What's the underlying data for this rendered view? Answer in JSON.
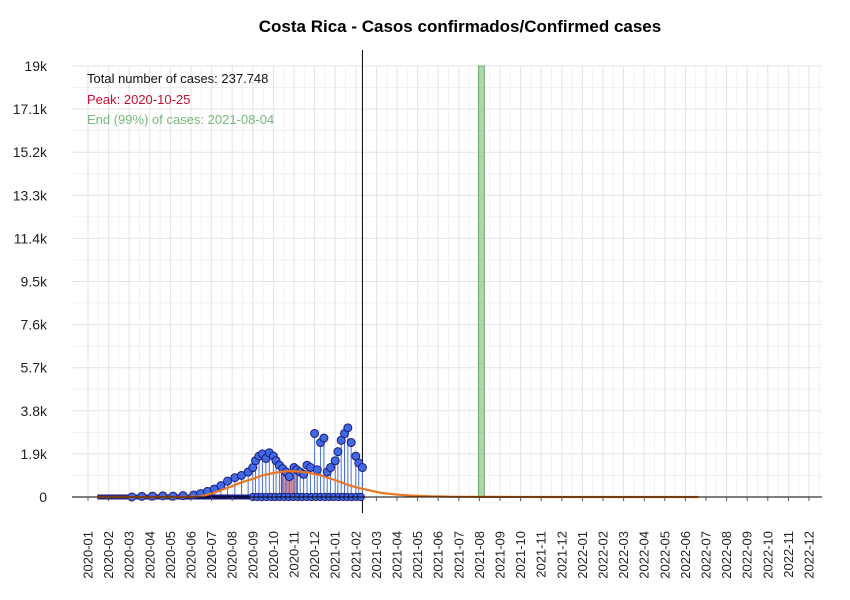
{
  "chart_data": {
    "type": "line",
    "title": "Costa Rica - Casos confirmados/Confirmed cases",
    "xlabel": "",
    "ylabel": "",
    "x_ticks": [
      "2020-01",
      "2020-02",
      "2020-03",
      "2020-04",
      "2020-05",
      "2020-06",
      "2020-07",
      "2020-08",
      "2020-09",
      "2020-10",
      "2020-11",
      "2020-12",
      "2021-01",
      "2021-02",
      "2021-03",
      "2021-04",
      "2021-05",
      "2021-06",
      "2021-07",
      "2021-08",
      "2021-09",
      "2021-10",
      "2021-11",
      "2021-12",
      "2022-01",
      "2022-02",
      "2022-03",
      "2022-04",
      "2022-05",
      "2022-06",
      "2022-07",
      "2022-08",
      "2022-09",
      "2022-10",
      "2022-11",
      "2022-12"
    ],
    "y_ticks": [
      0,
      1900,
      3800,
      5700,
      7600,
      9500,
      11400,
      13300,
      15200,
      17100,
      19000
    ],
    "y_tick_labels": [
      "0",
      "1.9k",
      "3.8k",
      "5.7k",
      "7.6k",
      "9.5k",
      "11.4k",
      "13.3k",
      "15.2k",
      "17.1k",
      "19k"
    ],
    "ylim": [
      0,
      19000
    ],
    "grid": true,
    "annotations": {
      "total": "Total number of cases: 237.748",
      "peak": "Peak: 2020-10-25",
      "end": "End (99%) of cases: 2021-08-04"
    },
    "markers": {
      "today": "2021-02-10",
      "peak": "2020-10-25",
      "end": "2021-08-04"
    },
    "series": [
      {
        "kind": "observed",
        "x": [
          "2020-03-05",
          "2020-03-20",
          "2020-04-05",
          "2020-04-20",
          "2020-05-05",
          "2020-05-20",
          "2020-06-05",
          "2020-06-15",
          "2020-06-25",
          "2020-07-05",
          "2020-07-15",
          "2020-07-25",
          "2020-08-05",
          "2020-08-15",
          "2020-08-25",
          "2020-09-01",
          "2020-09-05",
          "2020-09-10",
          "2020-09-15",
          "2020-09-20",
          "2020-09-25",
          "2020-10-01",
          "2020-10-05",
          "2020-10-10",
          "2020-10-15",
          "2020-10-20",
          "2020-10-25",
          "2020-11-01",
          "2020-11-05",
          "2020-11-10",
          "2020-11-15",
          "2020-11-20",
          "2020-11-25",
          "2020-12-01",
          "2020-12-05",
          "2020-12-10",
          "2020-12-15",
          "2020-12-20",
          "2020-12-25",
          "2021-01-01",
          "2021-01-05",
          "2021-01-10",
          "2021-01-15",
          "2021-01-20",
          "2021-01-25",
          "2021-02-01",
          "2021-02-05",
          "2021-02-10"
        ],
        "y": [
          0,
          30,
          40,
          50,
          40,
          60,
          90,
          150,
          250,
          350,
          500,
          700,
          850,
          950,
          1100,
          1300,
          1600,
          1800,
          1900,
          1700,
          1950,
          1800,
          1600,
          1400,
          1250,
          1100,
          900,
          1300,
          1200,
          1100,
          1000,
          1400,
          1300,
          2800,
          1200,
          2400,
          2600,
          1100,
          1300,
          1600,
          2000,
          2500,
          2800,
          3050,
          2400,
          1800,
          1500,
          1300
        ]
      },
      {
        "kind": "fit",
        "x": [
          "2020-01-15",
          "2020-02-15",
          "2020-03-15",
          "2020-04-15",
          "2020-05-15",
          "2020-06-15",
          "2020-07-01",
          "2020-07-15",
          "2020-08-01",
          "2020-08-15",
          "2020-09-01",
          "2020-09-15",
          "2020-10-01",
          "2020-10-15",
          "2020-10-25",
          "2020-11-05",
          "2020-11-20",
          "2020-12-05",
          "2020-12-20",
          "2021-01-05",
          "2021-01-20",
          "2021-02-05",
          "2021-02-20",
          "2021-03-05",
          "2021-03-20",
          "2021-04-05",
          "2021-04-20",
          "2021-05-05",
          "2021-05-20",
          "2021-06-05",
          "2021-06-20",
          "2021-07-05",
          "2021-07-20",
          "2021-08-04",
          "2021-09-01",
          "2021-12-01",
          "2022-03-01",
          "2022-06-01",
          "2022-06-20"
        ],
        "y": [
          0,
          0,
          0,
          0,
          0,
          20,
          150,
          300,
          480,
          650,
          800,
          950,
          1060,
          1120,
          1140,
          1130,
          1080,
          990,
          860,
          700,
          540,
          400,
          290,
          200,
          140,
          95,
          65,
          45,
          30,
          20,
          14,
          10,
          7,
          5,
          3,
          1,
          0,
          0,
          0
        ]
      }
    ]
  }
}
